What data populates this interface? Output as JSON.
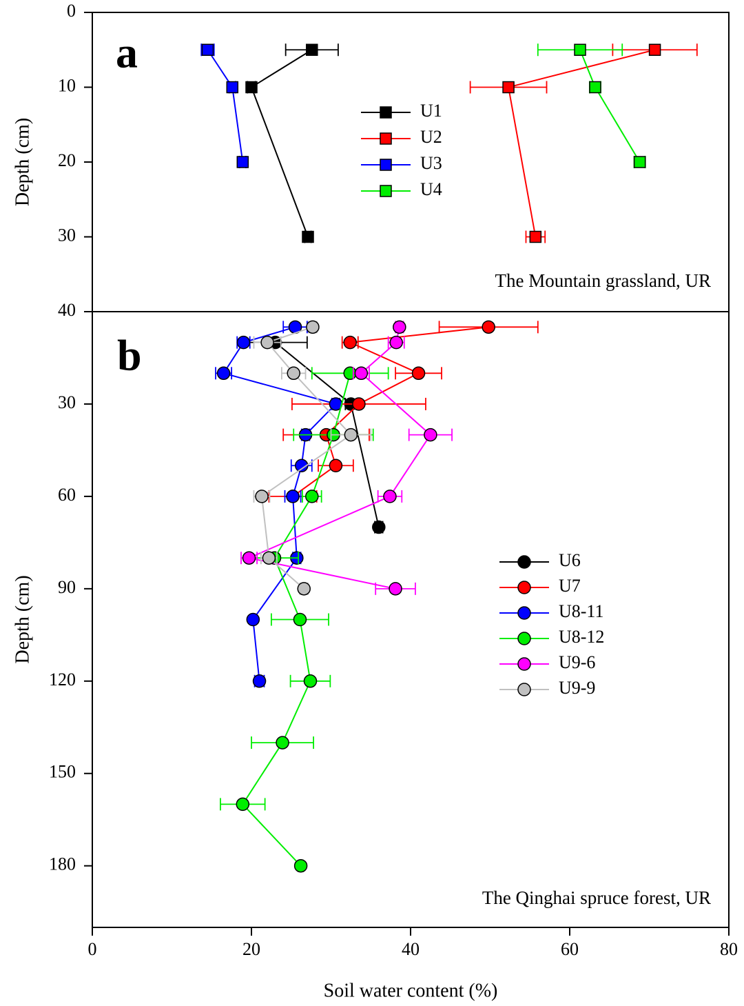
{
  "chart_data": [
    {
      "type": "line",
      "label": "a",
      "note": "The Mountain grassland, UR",
      "ylabel": "Depth (cm)",
      "xlim": [
        0,
        80
      ],
      "ylim": [
        0,
        40
      ],
      "yticks": [
        0,
        10,
        20,
        30,
        40
      ],
      "series": [
        {
          "name": "U1",
          "color": "#000000",
          "y": [
            5,
            10,
            30
          ],
          "values": [
            27.6,
            20.0,
            27.1
          ],
          "errors": [
            3.3,
            0.5,
            0.4
          ]
        },
        {
          "name": "U2",
          "color": "#ff0000",
          "y": [
            5,
            10,
            30
          ],
          "values": [
            70.7,
            52.3,
            55.7
          ],
          "errors": [
            5.3,
            4.8,
            1.2
          ]
        },
        {
          "name": "U3",
          "color": "#0000ff",
          "y": [
            5,
            10,
            20
          ],
          "values": [
            14.5,
            17.6,
            18.9
          ],
          "errors": [
            0.8,
            0.4,
            0.4
          ]
        },
        {
          "name": "U4",
          "color": "#00ee00",
          "y": [
            5,
            10,
            20
          ],
          "values": [
            61.3,
            63.2,
            68.8
          ],
          "errors": [
            5.3,
            0.7,
            0.7
          ]
        }
      ]
    },
    {
      "type": "line",
      "label": "b",
      "note": "The Qinghai spruce forest, UR",
      "ylabel": "Depth (cm)",
      "xlabel": "Soil water content (%)",
      "xlim": [
        0,
        80
      ],
      "xticks": [
        0,
        20,
        40,
        60,
        80
      ],
      "ylim": [
        0,
        200
      ],
      "yticks": [
        30,
        60,
        90,
        120,
        150,
        180
      ],
      "series": [
        {
          "name": "U6",
          "color": "#000000",
          "y": [
            10,
            30,
            70
          ],
          "values": [
            23.0,
            32.5,
            36.0
          ],
          "errors": [
            4.0,
            0.7,
            0.5
          ]
        },
        {
          "name": "U7",
          "color": "#ff0000",
          "y": [
            5,
            10,
            20,
            30,
            40,
            50,
            60
          ],
          "values": [
            49.8,
            32.4,
            41.0,
            33.5,
            29.4,
            30.6,
            25.2
          ],
          "errors": [
            6.2,
            1.0,
            2.9,
            8.4,
            5.4,
            2.2,
            3.0
          ]
        },
        {
          "name": "U8-11",
          "color": "#0000ff",
          "y": [
            5,
            10,
            20,
            30,
            40,
            50,
            60,
            80,
            100,
            120
          ],
          "values": [
            25.5,
            19.0,
            16.5,
            30.6,
            26.8,
            26.3,
            25.2,
            25.7,
            20.2,
            21.0
          ],
          "errors": [
            1.5,
            0.8,
            1.0,
            0.5,
            0.5,
            1.3,
            1.0,
            0.5,
            0.3,
            0.6
          ]
        },
        {
          "name": "U8-12",
          "color": "#00ee00",
          "y": [
            20,
            40,
            60,
            80,
            100,
            120,
            140,
            160,
            180
          ],
          "values": [
            32.4,
            30.3,
            27.6,
            22.9,
            26.1,
            27.4,
            23.9,
            18.9,
            26.2
          ],
          "errors": [
            4.8,
            5.0,
            1.2,
            3.0,
            3.6,
            2.5,
            3.9,
            2.8,
            0.3
          ]
        },
        {
          "name": "U9-6",
          "color": "#ff00ff",
          "y": [
            5,
            10,
            20,
            40,
            60,
            80,
            90
          ],
          "values": [
            38.6,
            38.2,
            33.8,
            42.5,
            37.4,
            19.7,
            38.1
          ],
          "errors": [
            0.5,
            1.0,
            1.0,
            2.7,
            1.5,
            1.0,
            2.5
          ]
        },
        {
          "name": "U9-9",
          "color": "#c0c0c0",
          "y": [
            5,
            10,
            20,
            40,
            60,
            80,
            90
          ],
          "values": [
            27.7,
            22.0,
            25.3,
            32.5,
            21.3,
            22.2,
            26.6
          ],
          "errors": [
            0.5,
            1.7,
            1.5,
            2.5,
            1.0,
            1.0,
            0.5
          ]
        }
      ]
    }
  ]
}
